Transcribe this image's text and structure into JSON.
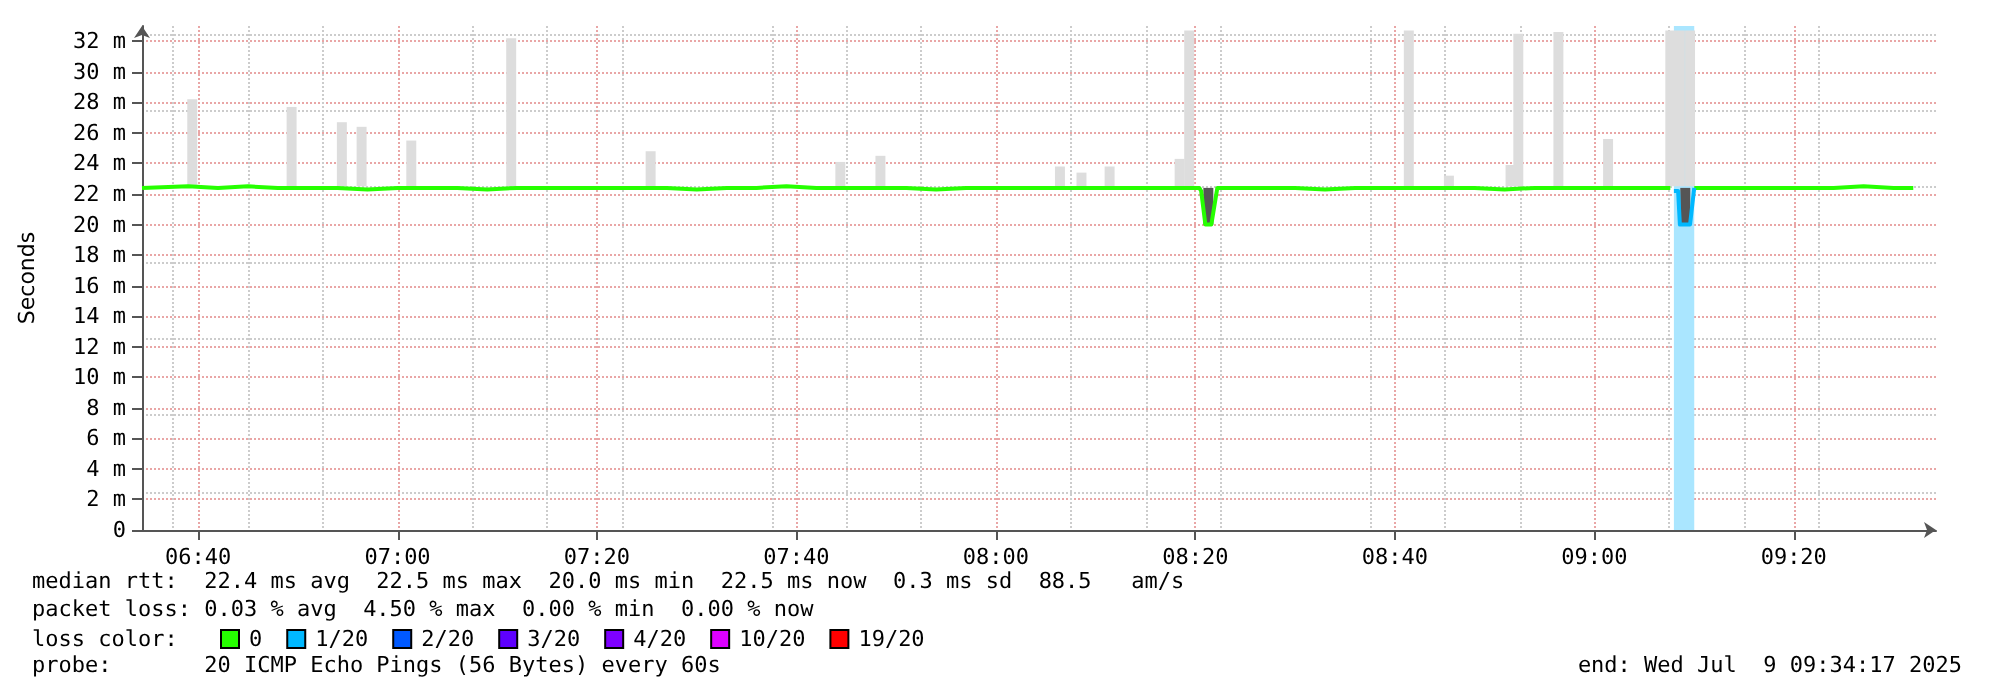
{
  "chart_data": {
    "type": "line",
    "ylabel": "Seconds",
    "legend_title": "loss color:",
    "legend": "bottom left",
    "grid": true,
    "marker": "none",
    "xlim": [
      6.573,
      9.571
    ],
    "xticks": [
      {
        "value": 6.6667,
        "label": "06:40"
      },
      {
        "value": 7,
        "label": "07:00"
      },
      {
        "value": 7.3333,
        "label": "07:20"
      },
      {
        "value": 7.6667,
        "label": "07:40"
      },
      {
        "value": 8,
        "label": "08:00"
      },
      {
        "value": 8.3333,
        "label": "08:20"
      },
      {
        "value": 8.6667,
        "label": "08:40"
      },
      {
        "value": 9,
        "label": "09:00"
      },
      {
        "value": 9.3333,
        "label": "09:20"
      }
    ],
    "ylim": [
      0,
      33
    ],
    "yticks": [
      0,
      {
        "value": 2,
        "label": "2 m"
      },
      {
        "value": 4,
        "label": "4 m"
      },
      {
        "value": 6,
        "label": "6 m"
      },
      {
        "value": 8,
        "label": "8 m"
      },
      {
        "value": 10,
        "label": "10 m"
      },
      {
        "value": 12,
        "label": "12 m"
      },
      {
        "value": 14,
        "label": "14 m"
      },
      {
        "value": 16,
        "label": "16 m"
      },
      {
        "value": 18,
        "label": "18 m"
      },
      {
        "value": 20,
        "label": "20 m"
      },
      {
        "value": 22,
        "label": "22 m"
      },
      {
        "value": 24,
        "label": "24 m"
      },
      {
        "value": 26,
        "label": "26 m"
      },
      {
        "value": 28,
        "label": "28 m"
      },
      {
        "value": 30,
        "label": "30 m"
      },
      {
        "value": 32,
        "label": "32 m"
      }
    ],
    "bands": [
      {
        "axis": "x",
        "from": 9.133,
        "to": 9.167,
        "color": "#aae6ff"
      }
    ],
    "series": [
      {
        "type": "bar",
        "color": "#dddddd",
        "x": [
          6.657,
          6.823,
          6.907,
          6.94,
          7.023,
          7.19,
          7.423,
          7.74,
          7.807,
          8.107,
          8.143,
          8.19,
          8.307,
          8.323,
          8.69,
          8.757,
          8.86,
          8.873,
          8.94,
          9.023,
          9.127,
          9.143,
          9.16
        ],
        "base": [
          22.5,
          22.5,
          22.5,
          22.5,
          22.5,
          22.5,
          22.5,
          22.5,
          22.5,
          22.5,
          22.5,
          22.5,
          22.5,
          22.5,
          22.5,
          22.5,
          22.5,
          22.5,
          22.5,
          22.5,
          22.5,
          22.5,
          22.5
        ],
        "values": [
          5.7,
          5.2,
          4.2,
          3.9,
          3.0,
          9.7,
          2.3,
          1.6,
          2.0,
          1.3,
          0.9,
          1.3,
          1.8,
          10.2,
          10.2,
          0.7,
          1.4,
          10.0,
          10.1,
          3.1,
          10.2,
          10.2,
          10.2
        ]
      },
      {
        "type": "bar",
        "color": "#555555",
        "x": [
          8.355,
          9.152
        ],
        "base": [
          20.0,
          20.0
        ],
        "values": [
          2.4,
          2.4
        ]
      },
      {
        "name": "0",
        "color": "#26ff00",
        "x": [
          6.573,
          6.65,
          6.7,
          6.75,
          6.8,
          6.85,
          6.9,
          6.95,
          7.0,
          7.05,
          7.1,
          7.15,
          7.2,
          7.25,
          7.3,
          7.35,
          7.4,
          7.45,
          7.5,
          7.55,
          7.6,
          7.65,
          7.7,
          7.75,
          7.8,
          7.85,
          7.9,
          7.95,
          8.0,
          8.05,
          8.1,
          8.15,
          8.2,
          8.25,
          8.3,
          8.34,
          8.343,
          8.35,
          8.36,
          8.37,
          8.4,
          8.45,
          8.5,
          8.55,
          8.6,
          8.65,
          8.7,
          8.75,
          8.8,
          8.85,
          8.9,
          8.95,
          9.0,
          9.05,
          9.1,
          9.127,
          9.14,
          9.167,
          9.2,
          9.25,
          9.3,
          9.35,
          9.4,
          9.45,
          9.5,
          9.533
        ],
        "values": [
          22.4,
          22.5,
          22.4,
          22.5,
          22.4,
          22.4,
          22.4,
          22.3,
          22.4,
          22.4,
          22.4,
          22.3,
          22.4,
          22.4,
          22.4,
          22.4,
          22.4,
          22.4,
          22.3,
          22.4,
          22.4,
          22.5,
          22.4,
          22.4,
          22.4,
          22.4,
          22.3,
          22.4,
          22.4,
          22.4,
          22.4,
          22.4,
          22.4,
          22.4,
          22.4,
          22.4,
          22.2,
          20.0,
          20.0,
          22.4,
          22.4,
          22.4,
          22.4,
          22.3,
          22.4,
          22.4,
          22.4,
          22.4,
          22.4,
          22.3,
          22.4,
          22.4,
          22.4,
          22.4,
          22.4,
          22.4,
          null,
          22.4,
          22.4,
          22.4,
          22.4,
          22.4,
          22.4,
          22.5,
          22.4,
          22.4
        ]
      },
      {
        "name": "1/20",
        "color": "#00b8ff",
        "x": [
          9.133,
          9.14,
          9.143,
          9.16,
          9.167
        ],
        "values": [
          22.2,
          22.2,
          20.0,
          20.0,
          22.4
        ]
      },
      {
        "name": "2/20",
        "color": "#0059ff"
      },
      {
        "name": "3/20",
        "color": "#5e00ff"
      },
      {
        "name": "4/20",
        "color": "#7e00ff"
      },
      {
        "name": "10/20",
        "color": "#dd00ff"
      },
      {
        "name": "19/20",
        "color": "#ff0000"
      }
    ],
    "annotations": [
      "median rtt:  22.4 ms avg  22.5 ms max  20.0 ms min  22.5 ms now  0.3 ms sd  88.5   am/s",
      "packet loss: 0.03 % avg  4.50 % max  0.00 % min  0.00 % now",
      "probe:       20 ICMP Echo Pings (56 Bytes) every 60s",
      "end: Wed Jul  9 09:34:17 2025"
    ]
  }
}
